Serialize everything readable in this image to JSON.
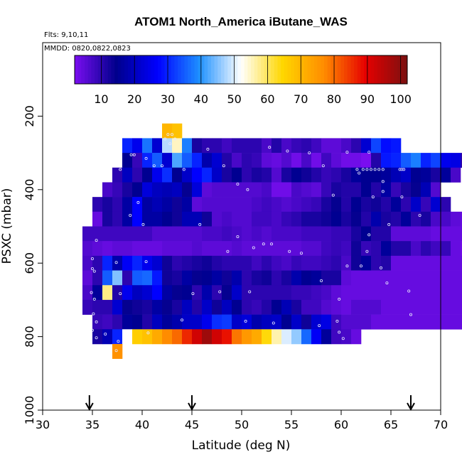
{
  "chart_data": {
    "type": "heatmap",
    "title": "ATOM1 North_America iButane_WAS",
    "flights_label": "Flts: 9,10,11",
    "dates_label": "MMDD: 0820,0822,0823",
    "xlabel": "Latitude (deg N)",
    "ylabel": "PSXC (mbar)",
    "xlim": [
      30,
      70
    ],
    "ylim": [
      1000,
      0
    ],
    "x_ticks": [
      "30",
      "35",
      "40",
      "45",
      "50",
      "55",
      "60",
      "65",
      "70"
    ],
    "y_ticks": [
      "200",
      "400",
      "600",
      "800",
      "1000"
    ],
    "colorbar": {
      "range": [
        2,
        102
      ],
      "tick_labels": [
        "10",
        "20",
        "30",
        "40",
        "50",
        "60",
        "70",
        "80",
        "90",
        "100"
      ],
      "colors": [
        "#7a0ef0",
        "#00008c",
        "#0000ff",
        "#1e90ff",
        "#ffffff",
        "#ffd700",
        "#ff8c00",
        "#e60000",
        "#7a1010"
      ]
    },
    "cell_size": {
      "lat": 1,
      "pres": 40
    },
    "rows": [
      {
        "p": 240,
        "start": 42,
        "values": [
          70,
          68
        ]
      },
      {
        "p": 280,
        "start": 38,
        "values": [
          30,
          25,
          37,
          22,
          48,
          55,
          38,
          12,
          10,
          10,
          8,
          10,
          10,
          10,
          7,
          11,
          7,
          9,
          10,
          8,
          5,
          5,
          7,
          10,
          22,
          33,
          28,
          29
        ]
      },
      {
        "p": 320,
        "start": 38,
        "values": [
          15,
          9,
          30,
          35,
          22,
          42,
          35,
          30,
          18,
          22,
          11,
          7,
          10,
          9,
          5,
          4,
          6,
          3,
          7,
          3,
          8,
          5,
          3,
          3,
          1,
          11,
          29,
          30,
          35,
          38,
          30,
          33,
          25,
          24,
          10
        ]
      },
      {
        "p": 360,
        "start": 37,
        "values": [
          10,
          20,
          10,
          15,
          25,
          31,
          15,
          21,
          27,
          30,
          21,
          12,
          15,
          10,
          12,
          11,
          6,
          12,
          15,
          13,
          11,
          9,
          10,
          12,
          16,
          15,
          15,
          16,
          19,
          21,
          15,
          16,
          12,
          16,
          7
        ]
      },
      {
        "p": 400,
        "start": 36,
        "values": [
          7,
          9,
          12,
          15,
          23,
          20,
          19,
          20,
          14,
          23,
          5,
          6,
          6,
          6,
          6,
          6,
          7,
          3,
          3,
          7,
          6,
          5,
          9,
          12,
          11,
          11,
          15,
          11,
          17,
          9,
          12,
          14,
          19,
          6
        ]
      },
      {
        "p": 440,
        "start": 35,
        "values": [
          10,
          12,
          10,
          17,
          27,
          17,
          19,
          17,
          13,
          17,
          5,
          6,
          6,
          6,
          6,
          6,
          7,
          8,
          7,
          6,
          7,
          8,
          9,
          12,
          14,
          11,
          15,
          12,
          13,
          11,
          16,
          10,
          21,
          9,
          22,
          10
        ]
      },
      {
        "p": 480,
        "start": 35,
        "values": [
          4,
          12,
          10,
          17,
          27,
          17,
          17,
          15,
          13,
          19,
          19,
          13,
          6,
          7,
          6,
          6,
          8,
          8,
          7,
          9,
          10,
          12,
          12,
          13,
          15,
          12,
          14,
          11,
          18,
          12,
          11,
          16,
          10,
          12,
          7,
          7,
          5,
          4
        ]
      },
      {
        "p": 520,
        "start": 34,
        "values": [
          8,
          8,
          8,
          8,
          8,
          8,
          8,
          6,
          6,
          6,
          6,
          6,
          7,
          7,
          8,
          7,
          6,
          7,
          6,
          7,
          7,
          7,
          8,
          8,
          8,
          9,
          9,
          12,
          15,
          11,
          11,
          5,
          5,
          5,
          5,
          4,
          4,
          4,
          4,
          4
        ]
      },
      {
        "p": 560,
        "start": 34,
        "values": [
          6,
          5,
          4,
          5,
          5,
          4,
          4,
          4,
          5,
          5,
          5,
          6,
          5,
          5,
          5,
          6,
          5,
          5,
          5,
          5,
          5,
          5,
          6,
          6,
          8,
          9,
          8,
          13,
          9,
          10,
          16,
          11,
          11,
          7,
          10,
          8,
          9,
          4,
          3,
          3
        ]
      },
      {
        "p": 600,
        "start": 34,
        "values": [
          7,
          10,
          30,
          18,
          26,
          30,
          25,
          22,
          13,
          10,
          11,
          12,
          13,
          11,
          10,
          10,
          10,
          8,
          10,
          8,
          7,
          9,
          8,
          8,
          9,
          10,
          7,
          13,
          16,
          10,
          11,
          4,
          4,
          4,
          4,
          4,
          4,
          4,
          4,
          4
        ]
      },
      {
        "p": 640,
        "start": 34,
        "values": [
          5,
          10,
          35,
          45,
          10,
          35,
          36,
          29,
          13,
          12,
          17,
          14,
          15,
          17,
          13,
          18,
          10,
          12,
          13,
          10,
          12,
          18,
          15,
          16,
          12,
          12,
          5,
          4,
          4,
          4,
          4,
          4,
          4,
          4,
          4,
          4,
          4,
          4,
          4,
          4
        ]
      },
      {
        "p": 680,
        "start": 34,
        "values": [
          7,
          16,
          58,
          11,
          25,
          20,
          22,
          27,
          17,
          14,
          15,
          10,
          18,
          10,
          14,
          21,
          10,
          10,
          10,
          10,
          10,
          9,
          9,
          8,
          7,
          5,
          4,
          4,
          4,
          4,
          4,
          4,
          4,
          4,
          4,
          4,
          4,
          4,
          4,
          4
        ]
      },
      {
        "p": 720,
        "start": 34,
        "values": [
          9,
          10,
          10,
          22,
          14,
          13,
          12,
          17,
          14,
          12,
          20,
          11,
          21,
          13,
          20,
          15,
          10,
          9,
          11,
          15,
          19,
          12,
          8,
          8,
          6,
          5,
          4,
          6,
          6,
          6,
          4,
          4,
          4,
          4,
          4,
          4,
          4,
          4,
          4,
          4
        ]
      },
      {
        "p": 760,
        "start": 35,
        "values": [
          9,
          8,
          10,
          16,
          15,
          11,
          20,
          16,
          18,
          21,
          21,
          25,
          31,
          32,
          21,
          23,
          18,
          20,
          21,
          15,
          21,
          13,
          22,
          24,
          8,
          6,
          6,
          6,
          4,
          4,
          4,
          4,
          4,
          4,
          4,
          4,
          4,
          4,
          4
        ]
      },
      {
        "p": 800,
        "start": 35,
        "values": [
          12,
          19,
          30,
          52,
          66,
          68,
          72,
          77,
          80,
          86,
          92,
          98,
          92,
          88,
          79,
          75,
          72,
          64,
          56,
          50,
          46,
          36,
          26,
          16,
          8,
          7,
          4
        ]
      },
      {
        "p": 840,
        "start": 37,
        "values": [
          76
        ]
      }
    ],
    "sample_points": [
      [
        42.6,
        250
      ],
      [
        43.0,
        250
      ],
      [
        42.3,
        262
      ],
      [
        43.3,
        262
      ],
      [
        42.8,
        275
      ],
      [
        46.6,
        290
      ],
      [
        52.8,
        285
      ],
      [
        40.4,
        315
      ],
      [
        54.6,
        295
      ],
      [
        56.8,
        300
      ],
      [
        60.6,
        298
      ],
      [
        62.8,
        298
      ],
      [
        38.9,
        305
      ],
      [
        39.2,
        305
      ],
      [
        42.0,
        335
      ],
      [
        61.6,
        345
      ],
      [
        62.2,
        345
      ],
      [
        62.6,
        345
      ],
      [
        63.0,
        345
      ],
      [
        63.4,
        345
      ],
      [
        63.8,
        345
      ],
      [
        64.2,
        345
      ],
      [
        65.9,
        345
      ],
      [
        66.1,
        345
      ],
      [
        66.3,
        345
      ],
      [
        37.8,
        345
      ],
      [
        41.2,
        335
      ],
      [
        44.2,
        345
      ],
      [
        48.2,
        335
      ],
      [
        58.2,
        335
      ],
      [
        61.8,
        355
      ],
      [
        64.2,
        378
      ],
      [
        49.6,
        385
      ],
      [
        50.6,
        400
      ],
      [
        64.2,
        405
      ],
      [
        59.2,
        415
      ],
      [
        63.2,
        420
      ],
      [
        66.1,
        420
      ],
      [
        39.6,
        435
      ],
      [
        38.8,
        470
      ],
      [
        40.1,
        495
      ],
      [
        45.8,
        495
      ],
      [
        49.6,
        528
      ],
      [
        53.0,
        548
      ],
      [
        62.8,
        523
      ],
      [
        64.8,
        495
      ],
      [
        67.9,
        470
      ],
      [
        35.4,
        538
      ],
      [
        51.2,
        558
      ],
      [
        56.0,
        573
      ],
      [
        54.8,
        568
      ],
      [
        52.2,
        548
      ],
      [
        48.6,
        568
      ],
      [
        62.6,
        568
      ],
      [
        35.0,
        588
      ],
      [
        37.4,
        598
      ],
      [
        40.4,
        596
      ],
      [
        60.6,
        608
      ],
      [
        62.0,
        608
      ],
      [
        64.0,
        613
      ],
      [
        35.0,
        615
      ],
      [
        35.2,
        622
      ],
      [
        58.0,
        648
      ],
      [
        50.8,
        678
      ],
      [
        64.6,
        654
      ],
      [
        34.9,
        680
      ],
      [
        35.2,
        698
      ],
      [
        37.8,
        683
      ],
      [
        45.1,
        683
      ],
      [
        47.8,
        678
      ],
      [
        66.8,
        676
      ],
      [
        59.8,
        698
      ],
      [
        67.0,
        740
      ],
      [
        59.6,
        758
      ],
      [
        35.1,
        738
      ],
      [
        35.4,
        760
      ],
      [
        44.0,
        755
      ],
      [
        50.4,
        758
      ],
      [
        53.2,
        763
      ],
      [
        57.8,
        770
      ],
      [
        35.0,
        783
      ],
      [
        35.4,
        803
      ],
      [
        37.6,
        813
      ],
      [
        40.6,
        790
      ],
      [
        59.8,
        788
      ],
      [
        60.2,
        805
      ],
      [
        36.3,
        793
      ],
      [
        37.4,
        838
      ]
    ],
    "flight_markers_lat": [
      34.7,
      45.0,
      67.0
    ],
    "grid": false,
    "legend": "none"
  }
}
